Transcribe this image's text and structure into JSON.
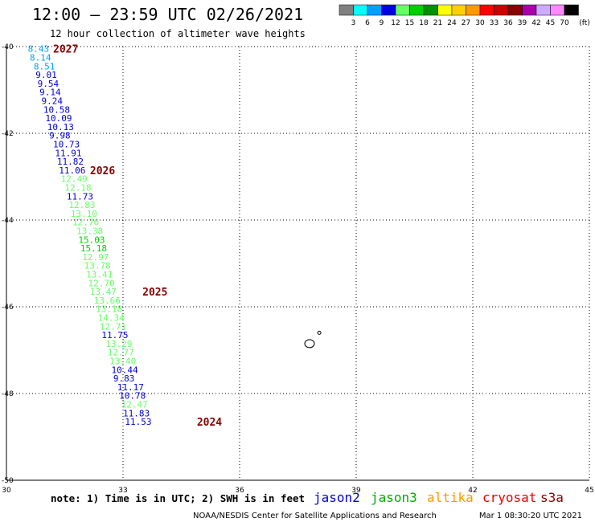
{
  "header": {
    "title": "12:00 – 23:59 UTC 02/26/2021",
    "subtitle": "12 hour collection of altimeter wave heights"
  },
  "legend": {
    "unit": "(ft)",
    "bins": [
      {
        "label": "3",
        "color": "#808080"
      },
      {
        "label": "6",
        "color": "#00ffff"
      },
      {
        "label": "9",
        "color": "#00a0ff"
      },
      {
        "label": "12",
        "color": "#0000e0"
      },
      {
        "label": "15",
        "color": "#66ff66"
      },
      {
        "label": "18",
        "color": "#00d000"
      },
      {
        "label": "21",
        "color": "#009000"
      },
      {
        "label": "24",
        "color": "#ffff00"
      },
      {
        "label": "27",
        "color": "#ffd000"
      },
      {
        "label": "30",
        "color": "#ff9900"
      },
      {
        "label": "33",
        "color": "#ff0000"
      },
      {
        "label": "36",
        "color": "#cc0000"
      },
      {
        "label": "39",
        "color": "#880000"
      },
      {
        "label": "42",
        "color": "#aa00aa"
      },
      {
        "label": "45",
        "color": "#ccaaff"
      },
      {
        "label": "70",
        "color": "#ff88ff"
      },
      {
        "label": "",
        "color": "#000000"
      }
    ]
  },
  "footer": {
    "note": "note: 1) Time is in UTC; 2) SWH is in feet",
    "credit": "NOAA/NESDIS Center for Satellite Applications and Research",
    "timestamp": "Mar  1 08:30:20 UTC 2021",
    "satellites": [
      {
        "name": "jason2",
        "color": "#0000dd"
      },
      {
        "name": "jason3",
        "color": "#00aa00"
      },
      {
        "name": "altika",
        "color": "#ff9900"
      },
      {
        "name": "cryosat",
        "color": "#ee0000"
      },
      {
        "name": "s3a",
        "color": "#880000"
      }
    ]
  },
  "chart_data": {
    "type": "scatter",
    "xlim": [
      30,
      45
    ],
    "ylim": [
      -50,
      -40
    ],
    "x_ticks": [
      30,
      33,
      36,
      39,
      42,
      45
    ],
    "y_ticks": [
      -40,
      -42,
      -44,
      -46,
      -48,
      -50
    ],
    "grid": true,
    "points": [
      {
        "lon": 30.55,
        "lat": -40.05,
        "label": "8.43",
        "color": "#00a0ff"
      },
      {
        "lon": 30.6,
        "lat": -40.25,
        "label": "8.14",
        "color": "#00a0ff"
      },
      {
        "lon": 30.7,
        "lat": -40.45,
        "label": "8.51",
        "color": "#00a0ff"
      },
      {
        "lon": 30.75,
        "lat": -40.65,
        "label": "9.01",
        "color": "#0000e0"
      },
      {
        "lon": 30.8,
        "lat": -40.85,
        "label": "9.54",
        "color": "#0000e0"
      },
      {
        "lon": 30.85,
        "lat": -41.05,
        "label": "9.14",
        "color": "#0000e0"
      },
      {
        "lon": 30.9,
        "lat": -41.25,
        "label": "9.24",
        "color": "#0000e0"
      },
      {
        "lon": 30.95,
        "lat": -41.45,
        "label": "10.58",
        "color": "#0000e0"
      },
      {
        "lon": 31.0,
        "lat": -41.65,
        "label": "10.09",
        "color": "#0000e0"
      },
      {
        "lon": 31.05,
        "lat": -41.85,
        "label": "10.13",
        "color": "#0000e0"
      },
      {
        "lon": 31.1,
        "lat": -42.05,
        "label": "9.98",
        "color": "#0000e0"
      },
      {
        "lon": 31.2,
        "lat": -42.25,
        "label": "10.73",
        "color": "#0000e0"
      },
      {
        "lon": 31.25,
        "lat": -42.45,
        "label": "11.91",
        "color": "#0000e0"
      },
      {
        "lon": 31.3,
        "lat": -42.65,
        "label": "11.82",
        "color": "#0000e0"
      },
      {
        "lon": 31.35,
        "lat": -42.85,
        "label": "11.06",
        "color": "#0000e0"
      },
      {
        "lon": 31.4,
        "lat": -43.05,
        "label": "12.49",
        "color": "#66ff66"
      },
      {
        "lon": 31.5,
        "lat": -43.25,
        "label": "12.18",
        "color": "#66ff66"
      },
      {
        "lon": 31.55,
        "lat": -43.45,
        "label": "11.73",
        "color": "#0000e0"
      },
      {
        "lon": 31.6,
        "lat": -43.65,
        "label": "12.83",
        "color": "#66ff66"
      },
      {
        "lon": 31.65,
        "lat": -43.85,
        "label": "13.10",
        "color": "#66ff66"
      },
      {
        "lon": 31.7,
        "lat": -44.05,
        "label": "12.76",
        "color": "#66ff66"
      },
      {
        "lon": 31.8,
        "lat": -44.25,
        "label": "13.38",
        "color": "#66ff66"
      },
      {
        "lon": 31.85,
        "lat": -44.45,
        "label": "15.03",
        "color": "#00d000"
      },
      {
        "lon": 31.9,
        "lat": -44.65,
        "label": "15.18",
        "color": "#00d000"
      },
      {
        "lon": 31.95,
        "lat": -44.85,
        "label": "12.97",
        "color": "#66ff66"
      },
      {
        "lon": 32.0,
        "lat": -45.05,
        "label": "13.78",
        "color": "#66ff66"
      },
      {
        "lon": 32.05,
        "lat": -45.25,
        "label": "13.41",
        "color": "#66ff66"
      },
      {
        "lon": 32.1,
        "lat": -45.45,
        "label": "12.70",
        "color": "#66ff66"
      },
      {
        "lon": 32.15,
        "lat": -45.65,
        "label": "13.47",
        "color": "#66ff66"
      },
      {
        "lon": 32.25,
        "lat": -45.85,
        "label": "13.66",
        "color": "#66ff66"
      },
      {
        "lon": 32.3,
        "lat": -46.05,
        "label": "13.18",
        "color": "#66ff66"
      },
      {
        "lon": 32.35,
        "lat": -46.25,
        "label": "14.34",
        "color": "#66ff66"
      },
      {
        "lon": 32.4,
        "lat": -46.45,
        "label": "12.71",
        "color": "#66ff66"
      },
      {
        "lon": 32.45,
        "lat": -46.65,
        "label": "11.75",
        "color": "#0000e0"
      },
      {
        "lon": 32.55,
        "lat": -46.85,
        "label": "13.29",
        "color": "#66ff66"
      },
      {
        "lon": 32.6,
        "lat": -47.05,
        "label": "12.77",
        "color": "#66ff66"
      },
      {
        "lon": 32.65,
        "lat": -47.25,
        "label": "13.40",
        "color": "#66ff66"
      },
      {
        "lon": 32.7,
        "lat": -47.45,
        "label": "10.44",
        "color": "#0000e0"
      },
      {
        "lon": 32.75,
        "lat": -47.65,
        "label": "9.83",
        "color": "#0000e0"
      },
      {
        "lon": 32.85,
        "lat": -47.85,
        "label": "11.17",
        "color": "#0000e0"
      },
      {
        "lon": 32.9,
        "lat": -48.05,
        "label": "10.78",
        "color": "#0000e0"
      },
      {
        "lon": 32.95,
        "lat": -48.25,
        "label": "12.47",
        "color": "#66ff66"
      },
      {
        "lon": 33.0,
        "lat": -48.45,
        "label": "11.83",
        "color": "#0000e0"
      },
      {
        "lon": 33.05,
        "lat": -48.65,
        "label": "11.53",
        "color": "#0000e0"
      }
    ],
    "time_labels": [
      {
        "lon": 31.2,
        "lat": -40.05,
        "label": "2027",
        "color": "#880000"
      },
      {
        "lon": 32.15,
        "lat": -42.85,
        "label": "2026",
        "color": "#880000"
      },
      {
        "lon": 33.5,
        "lat": -45.65,
        "label": "2025",
        "color": "#880000"
      },
      {
        "lon": 34.9,
        "lat": -48.65,
        "label": "2024",
        "color": "#880000"
      }
    ],
    "islands": [
      {
        "lon": 37.8,
        "lat": -46.85,
        "size": "large"
      },
      {
        "lon": 38.05,
        "lat": -46.6,
        "size": "small"
      }
    ]
  }
}
